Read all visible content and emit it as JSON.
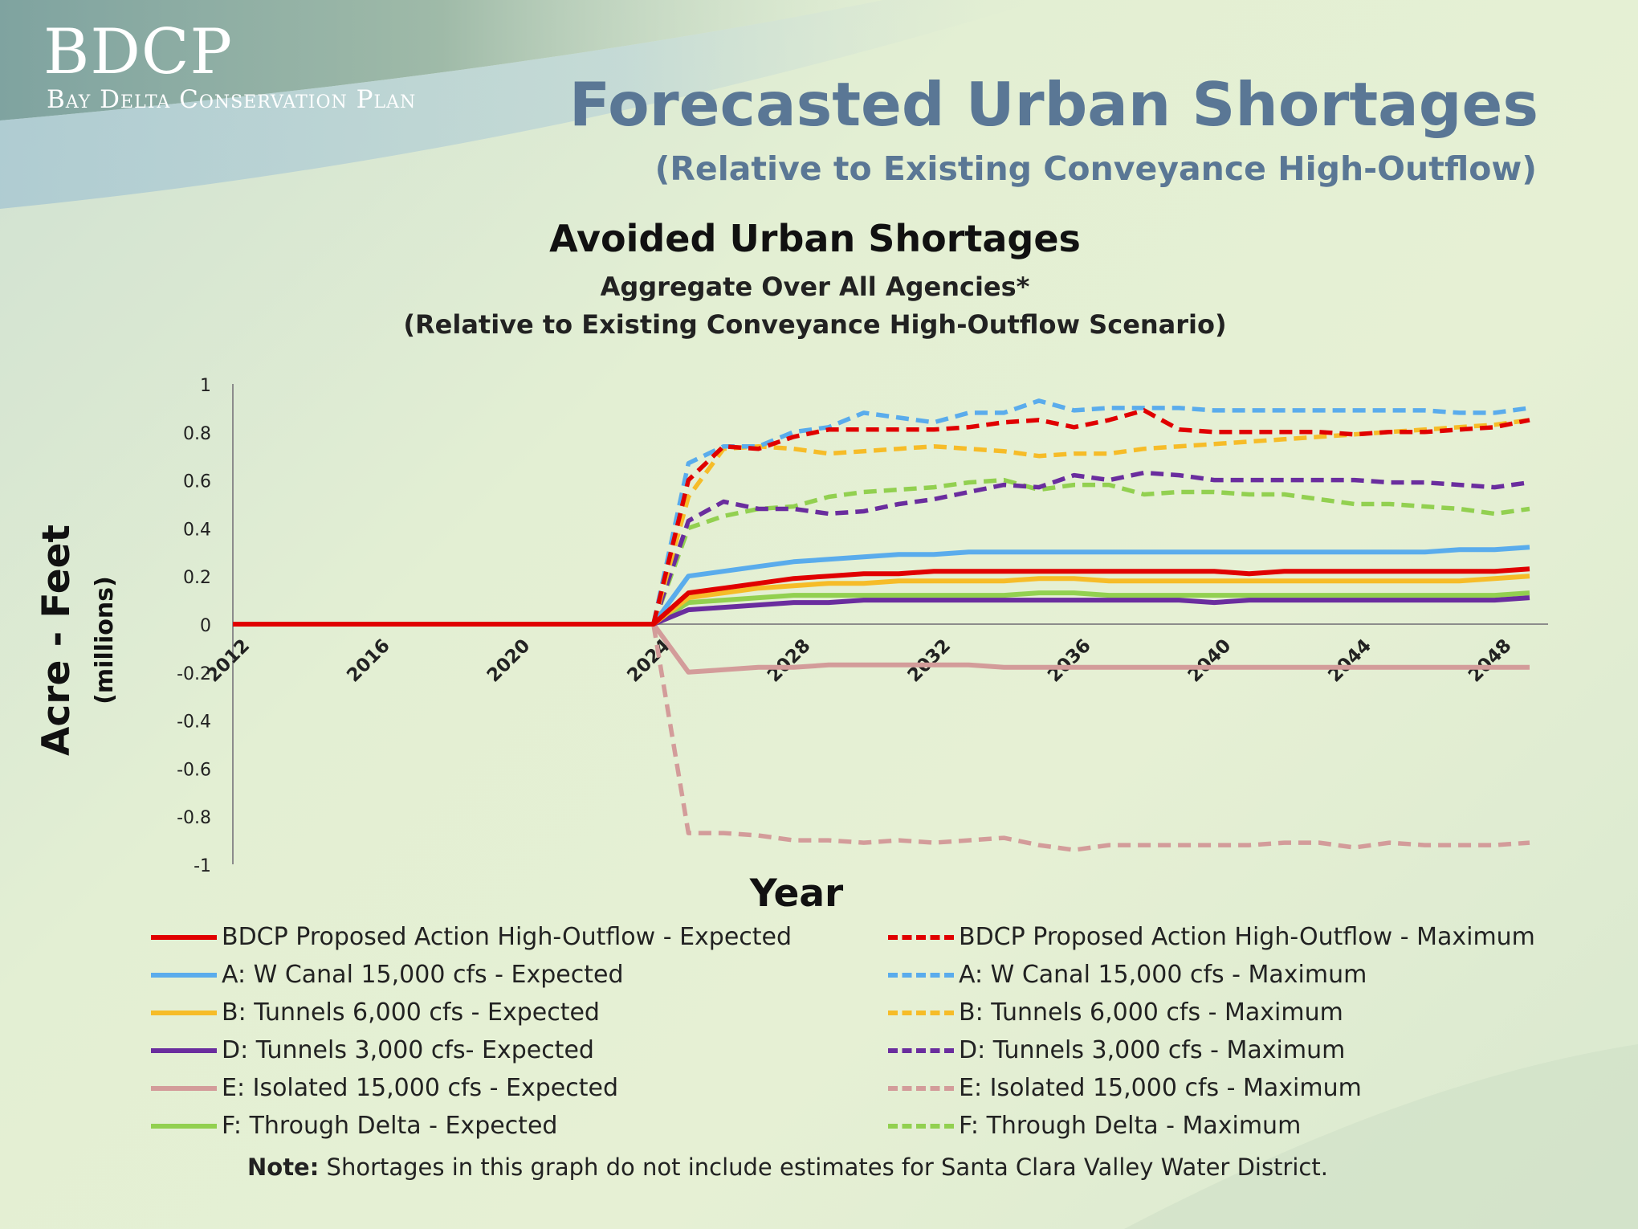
{
  "header": {
    "logo": "BDCP",
    "logo_subtitle": "Bay Delta Conservation Plan",
    "title": "Forecasted Urban Shortages",
    "subtitle": "(Relative to Existing Conveyance High-Outflow)"
  },
  "note": {
    "label": "Note:",
    "text": " Shortages in this graph do not include estimates for Santa Clara Valley Water District."
  },
  "chart_data": {
    "type": "line",
    "title": "Avoided Urban Shortages",
    "subtitle": "Aggregate Over All Agencies*",
    "subtitle2": "(Relative to Existing Conveyance High-Outflow Scenario)",
    "xlabel": "Year",
    "ylabel": "Acre - Feet",
    "ylabel_unit": "(millions)",
    "xlim": [
      2012,
      2049
    ],
    "ylim": [
      -1,
      1
    ],
    "x_ticks": [
      2012,
      2016,
      2020,
      2024,
      2028,
      2032,
      2036,
      2040,
      2044,
      2048
    ],
    "y_ticks": [
      "1",
      "0.8",
      "0.6",
      "0.4",
      "0.2",
      "0",
      "-0.2",
      "-0.4",
      "-0.6",
      "-0.8",
      "-1"
    ],
    "legend_position": "bottom",
    "x": [
      2012,
      2013,
      2014,
      2015,
      2016,
      2017,
      2018,
      2019,
      2020,
      2021,
      2022,
      2023,
      2024,
      2025,
      2026,
      2027,
      2028,
      2029,
      2030,
      2031,
      2032,
      2033,
      2034,
      2035,
      2036,
      2037,
      2038,
      2039,
      2040,
      2041,
      2042,
      2043,
      2044,
      2045,
      2046,
      2047,
      2048,
      2049
    ],
    "series": [
      {
        "name": "BDCP Proposed Action High-Outflow - Expected",
        "color": "#e00000",
        "dash": false,
        "values": [
          0,
          0,
          0,
          0,
          0,
          0,
          0,
          0,
          0,
          0,
          0,
          0,
          0,
          0.13,
          0.15,
          0.17,
          0.19,
          0.2,
          0.21,
          0.21,
          0.22,
          0.22,
          0.22,
          0.22,
          0.22,
          0.22,
          0.22,
          0.22,
          0.22,
          0.21,
          0.22,
          0.22,
          0.22,
          0.22,
          0.22,
          0.22,
          0.22,
          0.23
        ]
      },
      {
        "name": "BDCP Proposed Action High-Outflow - Maximum",
        "color": "#e00000",
        "dash": true,
        "values": [
          0,
          0,
          0,
          0,
          0,
          0,
          0,
          0,
          0,
          0,
          0,
          0,
          0,
          0.6,
          0.74,
          0.73,
          0.78,
          0.81,
          0.81,
          0.81,
          0.81,
          0.82,
          0.84,
          0.85,
          0.82,
          0.85,
          0.89,
          0.81,
          0.8,
          0.8,
          0.8,
          0.8,
          0.79,
          0.8,
          0.8,
          0.81,
          0.82,
          0.85
        ]
      },
      {
        "name": "A: W Canal 15,000 cfs - Expected",
        "color": "#5aacec",
        "dash": false,
        "values": [
          0,
          0,
          0,
          0,
          0,
          0,
          0,
          0,
          0,
          0,
          0,
          0,
          0,
          0.2,
          0.22,
          0.24,
          0.26,
          0.27,
          0.28,
          0.29,
          0.29,
          0.3,
          0.3,
          0.3,
          0.3,
          0.3,
          0.3,
          0.3,
          0.3,
          0.3,
          0.3,
          0.3,
          0.3,
          0.3,
          0.3,
          0.31,
          0.31,
          0.32
        ]
      },
      {
        "name": "A: W Canal 15,000 cfs - Maximum",
        "color": "#5aacec",
        "dash": true,
        "values": [
          0,
          0,
          0,
          0,
          0,
          0,
          0,
          0,
          0,
          0,
          0,
          0,
          0,
          0.67,
          0.74,
          0.74,
          0.8,
          0.82,
          0.88,
          0.86,
          0.84,
          0.88,
          0.88,
          0.93,
          0.89,
          0.9,
          0.9,
          0.9,
          0.89,
          0.89,
          0.89,
          0.89,
          0.89,
          0.89,
          0.89,
          0.88,
          0.88,
          0.9
        ]
      },
      {
        "name": "B: Tunnels 6,000 cfs - Expected",
        "color": "#f6bc28",
        "dash": false,
        "values": [
          0,
          0,
          0,
          0,
          0,
          0,
          0,
          0,
          0,
          0,
          0,
          0,
          0,
          0.11,
          0.13,
          0.15,
          0.16,
          0.17,
          0.17,
          0.18,
          0.18,
          0.18,
          0.18,
          0.19,
          0.19,
          0.18,
          0.18,
          0.18,
          0.18,
          0.18,
          0.18,
          0.18,
          0.18,
          0.18,
          0.18,
          0.18,
          0.19,
          0.2
        ]
      },
      {
        "name": "B: Tunnels 6,000 cfs - Maximum",
        "color": "#f6bc28",
        "dash": true,
        "values": [
          0,
          0,
          0,
          0,
          0,
          0,
          0,
          0,
          0,
          0,
          0,
          0,
          0,
          0.53,
          0.73,
          0.74,
          0.73,
          0.71,
          0.72,
          0.73,
          0.74,
          0.73,
          0.72,
          0.7,
          0.71,
          0.71,
          0.73,
          0.74,
          0.75,
          0.76,
          0.77,
          0.78,
          0.79,
          0.8,
          0.81,
          0.82,
          0.83,
          0.85
        ]
      },
      {
        "name": "D: Tunnels 3,000 cfs- Expected",
        "color": "#6a2d9e",
        "dash": false,
        "values": [
          0,
          0,
          0,
          0,
          0,
          0,
          0,
          0,
          0,
          0,
          0,
          0,
          0,
          0.06,
          0.07,
          0.08,
          0.09,
          0.09,
          0.1,
          0.1,
          0.1,
          0.1,
          0.1,
          0.1,
          0.1,
          0.1,
          0.1,
          0.1,
          0.09,
          0.1,
          0.1,
          0.1,
          0.1,
          0.1,
          0.1,
          0.1,
          0.1,
          0.11
        ]
      },
      {
        "name": "D: Tunnels 3,000 cfs - Maximum",
        "color": "#6a2d9e",
        "dash": true,
        "values": [
          0,
          0,
          0,
          0,
          0,
          0,
          0,
          0,
          0,
          0,
          0,
          0,
          0,
          0.43,
          0.51,
          0.48,
          0.48,
          0.46,
          0.47,
          0.5,
          0.52,
          0.55,
          0.58,
          0.57,
          0.62,
          0.6,
          0.63,
          0.62,
          0.6,
          0.6,
          0.6,
          0.6,
          0.6,
          0.59,
          0.59,
          0.58,
          0.57,
          0.59
        ]
      },
      {
        "name": "E: Isolated 15,000 cfs - Expected",
        "color": "#d39c9a",
        "dash": false,
        "values": [
          0,
          0,
          0,
          0,
          0,
          0,
          0,
          0,
          0,
          0,
          0,
          0,
          0,
          -0.2,
          -0.19,
          -0.18,
          -0.18,
          -0.17,
          -0.17,
          -0.17,
          -0.17,
          -0.17,
          -0.18,
          -0.18,
          -0.18,
          -0.18,
          -0.18,
          -0.18,
          -0.18,
          -0.18,
          -0.18,
          -0.18,
          -0.18,
          -0.18,
          -0.18,
          -0.18,
          -0.18,
          -0.18
        ]
      },
      {
        "name": "E: Isolated 15,000 cfs - Maximum",
        "color": "#d39c9a",
        "dash": true,
        "values": [
          0,
          0,
          0,
          0,
          0,
          0,
          0,
          0,
          0,
          0,
          0,
          0,
          0,
          -0.87,
          -0.87,
          -0.88,
          -0.9,
          -0.9,
          -0.91,
          -0.9,
          -0.91,
          -0.9,
          -0.89,
          -0.92,
          -0.94,
          -0.92,
          -0.92,
          -0.92,
          -0.92,
          -0.92,
          -0.91,
          -0.91,
          -0.93,
          -0.91,
          -0.92,
          -0.92,
          -0.92,
          -0.91
        ]
      },
      {
        "name": "F: Through Delta - Expected",
        "color": "#92d050",
        "dash": false,
        "values": [
          0,
          0,
          0,
          0,
          0,
          0,
          0,
          0,
          0,
          0,
          0,
          0,
          0,
          0.09,
          0.1,
          0.11,
          0.12,
          0.12,
          0.12,
          0.12,
          0.12,
          0.12,
          0.12,
          0.13,
          0.13,
          0.12,
          0.12,
          0.12,
          0.12,
          0.12,
          0.12,
          0.12,
          0.12,
          0.12,
          0.12,
          0.12,
          0.12,
          0.13
        ]
      },
      {
        "name": "F: Through Delta - Maximum",
        "color": "#92d050",
        "dash": true,
        "values": [
          0,
          0,
          0,
          0,
          0,
          0,
          0,
          0,
          0,
          0,
          0,
          0,
          0,
          0.4,
          0.45,
          0.48,
          0.49,
          0.53,
          0.55,
          0.56,
          0.57,
          0.59,
          0.6,
          0.56,
          0.58,
          0.58,
          0.54,
          0.55,
          0.55,
          0.54,
          0.54,
          0.52,
          0.5,
          0.5,
          0.49,
          0.48,
          0.46,
          0.48
        ]
      }
    ]
  }
}
